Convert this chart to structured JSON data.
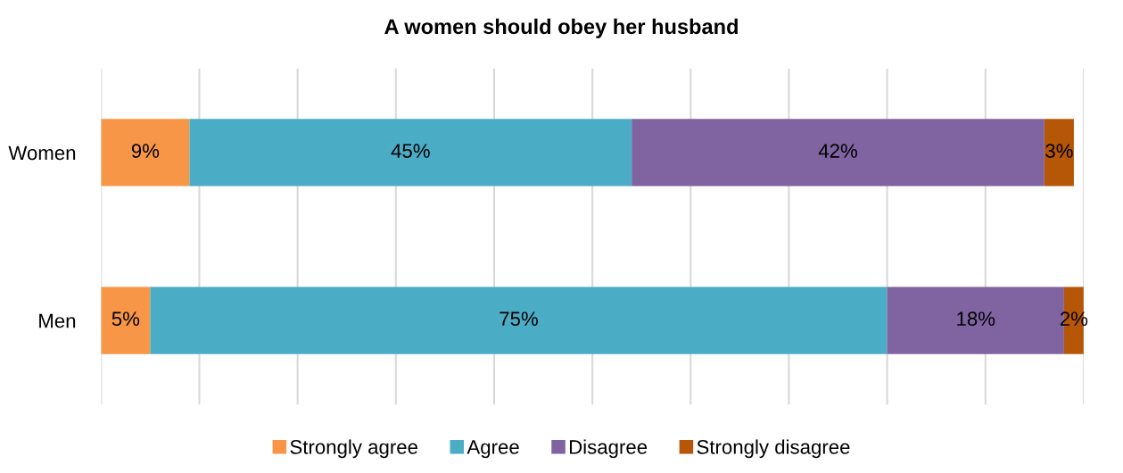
{
  "chart_data": {
    "type": "bar",
    "orientation": "horizontal",
    "stacked": true,
    "title": "A women should obey her husband",
    "categories": [
      "Women",
      "Men"
    ],
    "series": [
      {
        "name": "Strongly agree",
        "color": "#f79646",
        "values": [
          9,
          5
        ],
        "value_labels": [
          "9%",
          "5%"
        ]
      },
      {
        "name": "Agree",
        "color": "#4bacc6",
        "values": [
          45,
          75
        ],
        "value_labels": [
          "45%",
          "75%"
        ]
      },
      {
        "name": "Disagree",
        "color": "#8064a2",
        "values": [
          42,
          18
        ],
        "value_labels": [
          "42%",
          "18%"
        ]
      },
      {
        "name": "Strongly disagree",
        "color": "#b65708",
        "values": [
          3,
          2
        ],
        "value_labels": [
          "3%",
          "2%"
        ]
      }
    ],
    "grid": "x",
    "legend": "bottom",
    "tick_labels": "y"
  }
}
